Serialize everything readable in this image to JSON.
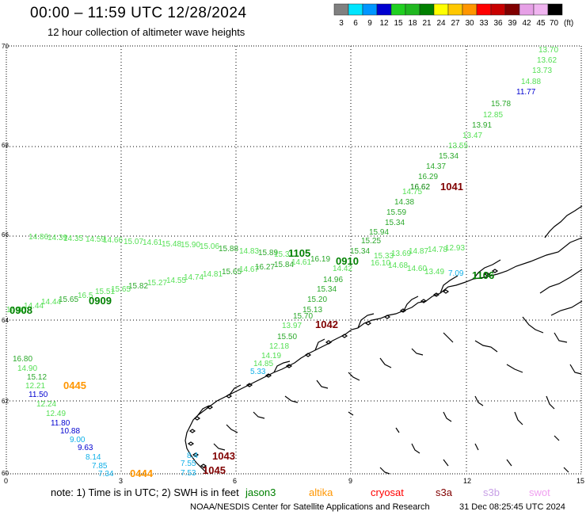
{
  "title": "00:00 – 11:59 UTC 12/28/2024",
  "subtitle": "12 hour collection of altimeter wave heights",
  "scale": {
    "unit": "(ft)",
    "stops": [
      {
        "label": "3",
        "color": "#808080"
      },
      {
        "label": "6",
        "color": "#00e5ff"
      },
      {
        "label": "9",
        "color": "#0096ff"
      },
      {
        "label": "12",
        "color": "#0000d0"
      },
      {
        "label": "15",
        "color": "#20d020"
      },
      {
        "label": "18",
        "color": "#20b820"
      },
      {
        "label": "21",
        "color": "#008000"
      },
      {
        "label": "24",
        "color": "#ffff00"
      },
      {
        "label": "27",
        "color": "#ffc800"
      },
      {
        "label": "30",
        "color": "#ff9600"
      },
      {
        "label": "33",
        "color": "#ff0000"
      },
      {
        "label": "36",
        "color": "#c80000"
      },
      {
        "label": "39",
        "color": "#800000"
      },
      {
        "label": "42",
        "color": "#e6a0e6"
      },
      {
        "label": "45",
        "color": "#f0b4f0"
      },
      {
        "label": "70",
        "color": "#000000"
      }
    ]
  },
  "axes": {
    "lat_ticks": [
      "70",
      "68",
      "66",
      "64",
      "62",
      "60"
    ],
    "lon_ticks": [
      "0",
      "3",
      "6",
      "9",
      "12",
      "15"
    ]
  },
  "tracks": [
    {
      "id": "0908",
      "color": "#008000"
    },
    {
      "id": "0909",
      "color": "#008000"
    },
    {
      "id": "1105",
      "color": "#008000"
    },
    {
      "id": "0910",
      "color": "#008000"
    },
    {
      "id": "1106",
      "color": "#008000"
    },
    {
      "id": "1041",
      "color": "#800000"
    },
    {
      "id": "1042",
      "color": "#800000"
    },
    {
      "id": "1043",
      "color": "#800000"
    },
    {
      "id": "1045",
      "color": "#800000"
    },
    {
      "id": "0445",
      "color": "#ff9600"
    },
    {
      "id": "0444",
      "color": "#ff9600"
    }
  ],
  "readings": {
    "ne_track": [
      "13.70",
      "13.62",
      "13.73",
      "14.88",
      "11.77",
      "15.78",
      "12.85",
      "13.91",
      "13.47",
      "13.55",
      "15.34",
      "14.37",
      "16.29",
      "16.62",
      "14.75",
      "14.38",
      "15.59",
      "15.34",
      "15.94",
      "15.25",
      "15.34",
      "14.42",
      "14.96",
      "15.34",
      "15.20",
      "15.13",
      "15.70",
      "13.97",
      "15.50",
      "12.18",
      "14.19",
      "14.85",
      "5.33"
    ],
    "west_row": [
      "14.86",
      "14.39",
      "14.35",
      "14.59",
      "14.66",
      "15.07",
      "14.61",
      "15.48",
      "15.90",
      "15.06",
      "15.88",
      "14.83",
      "15.89",
      "15.31"
    ],
    "west_low_row": [
      "14.85",
      "14.44",
      "14.44",
      "15.65",
      "16.5",
      "15.51",
      "15.65",
      "15.82",
      "15.27",
      "14.55",
      "14.74",
      "14.81",
      "15.65",
      "14.67",
      "16.27",
      "15.84",
      "14.61",
      "16.19",
      "16.10",
      "14.68",
      "14.60",
      "13.49",
      "7.09"
    ],
    "mid_row": [
      "15.33",
      "13.69",
      "14.87",
      "14.78",
      "12.93"
    ],
    "sw_track": [
      "16.80",
      "14.90",
      "15.12",
      "12.21",
      "11.50",
      "12.24",
      "12.49",
      "11.80",
      "10.88",
      "9.00",
      "9.63",
      "8.14",
      "7.85",
      "7.34",
      "7.53",
      "7.55",
      "8.4"
    ]
  },
  "note": "note:  1) Time is in UTC;  2) SWH is in feet",
  "legend": [
    {
      "label": "jason3",
      "color": "#008000"
    },
    {
      "label": "altika",
      "color": "#ff9600"
    },
    {
      "label": "cryosat",
      "color": "#ff0000"
    },
    {
      "label": "s3a",
      "color": "#800000"
    },
    {
      "label": "s3b",
      "color": "#c8a0e6"
    },
    {
      "label": "swot",
      "color": "#f0a0f0"
    }
  ],
  "credit": "NOAA/NESDIS Center for Satellite Applications and Research",
  "generated": "31 Dec 08:25:45 UTC 2024"
}
